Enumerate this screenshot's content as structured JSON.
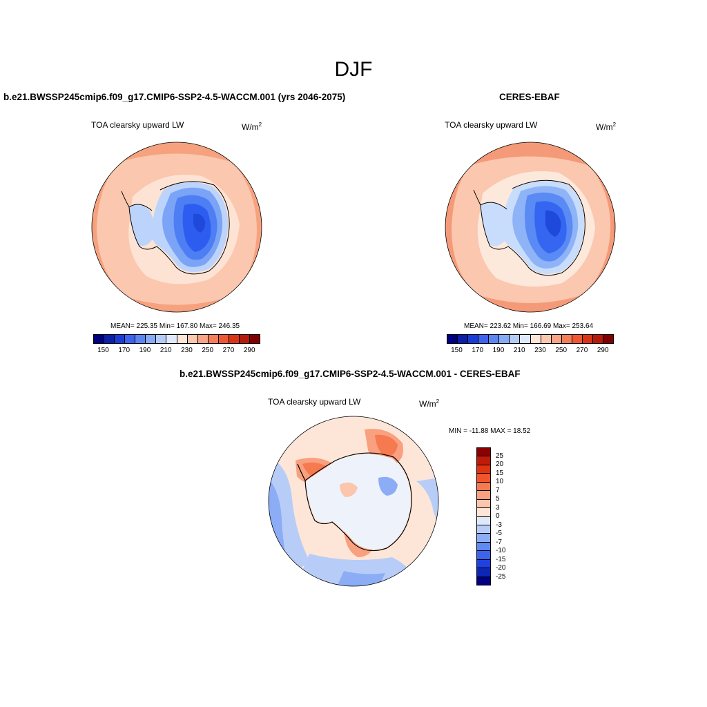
{
  "title": "DJF",
  "panels": [
    {
      "title": "b.e21.BWSSP245cmip6.f09_g17.CMIP6-SSP2-4.5-WACCM.001 (yrs 2046-2075)",
      "variable": "TOA clearsky upward LW",
      "units": "W/m",
      "units_sup": "2",
      "stats": "MEAN= 225.35  Min= 167.80  Max= 246.35",
      "ocean_outer_color": "#f6a27f",
      "ocean_mid_color": "#fbc7ae",
      "ocean_inner_color": "#fde3d4",
      "ice_colors": [
        "#bcd4fb",
        "#7ba4f6",
        "#4d7ef4",
        "#2d5df0",
        "#1e49db"
      ]
    },
    {
      "title": "CERES-EBAF",
      "variable": "TOA clearsky upward LW",
      "units": "W/m",
      "units_sup": "2",
      "stats": "MEAN= 223.62  Min= 166.69  Max= 253.64",
      "ocean_outer_color": "#f59a78",
      "ocean_mid_color": "#fbc7ae",
      "ocean_inner_color": "#fde8dc",
      "ice_colors": [
        "#c8dcfb",
        "#8fb3f7",
        "#5a8af4",
        "#3566f1",
        "#1e49db"
      ]
    }
  ],
  "colorbar_top": {
    "colors": [
      "#000080",
      "#0b1fa8",
      "#1a3cd4",
      "#3b63ef",
      "#5b86f2",
      "#87aaf5",
      "#b4cbf8",
      "#dfe9fb",
      "#fde5d7",
      "#fbc7ae",
      "#f8a486",
      "#f47e5a",
      "#ee5634",
      "#db3316",
      "#b51a0b",
      "#800000"
    ],
    "ticks": [
      "150",
      "170",
      "190",
      "210",
      "230",
      "250",
      "270",
      "290"
    ]
  },
  "diff_panel": {
    "title": "b.e21.BWSSP245cmip6.f09_g17.CMIP6-SSP2-4.5-WACCM.001 - CERES-EBAF",
    "variable": "TOA clearsky upward LW",
    "units": "W/m",
    "units_sup": "2",
    "stats": "MIN = -11.88 MAX =  18.52"
  },
  "colorbar_diff": {
    "colors": [
      "#8b0000",
      "#c01a0a",
      "#e0330f",
      "#f2542c",
      "#f57a50",
      "#f8a07f",
      "#fbc6ac",
      "#fde6d8",
      "#dfe9fb",
      "#b7cdf8",
      "#8cadf5",
      "#5f8af2",
      "#3b63ef",
      "#1f41e0",
      "#0e26b8",
      "#000080"
    ],
    "ticks": [
      "25",
      "20",
      "15",
      "10",
      "7",
      "5",
      "3",
      "0",
      "-3",
      "-5",
      "-7",
      "-10",
      "-15",
      "-20",
      "-25"
    ]
  }
}
